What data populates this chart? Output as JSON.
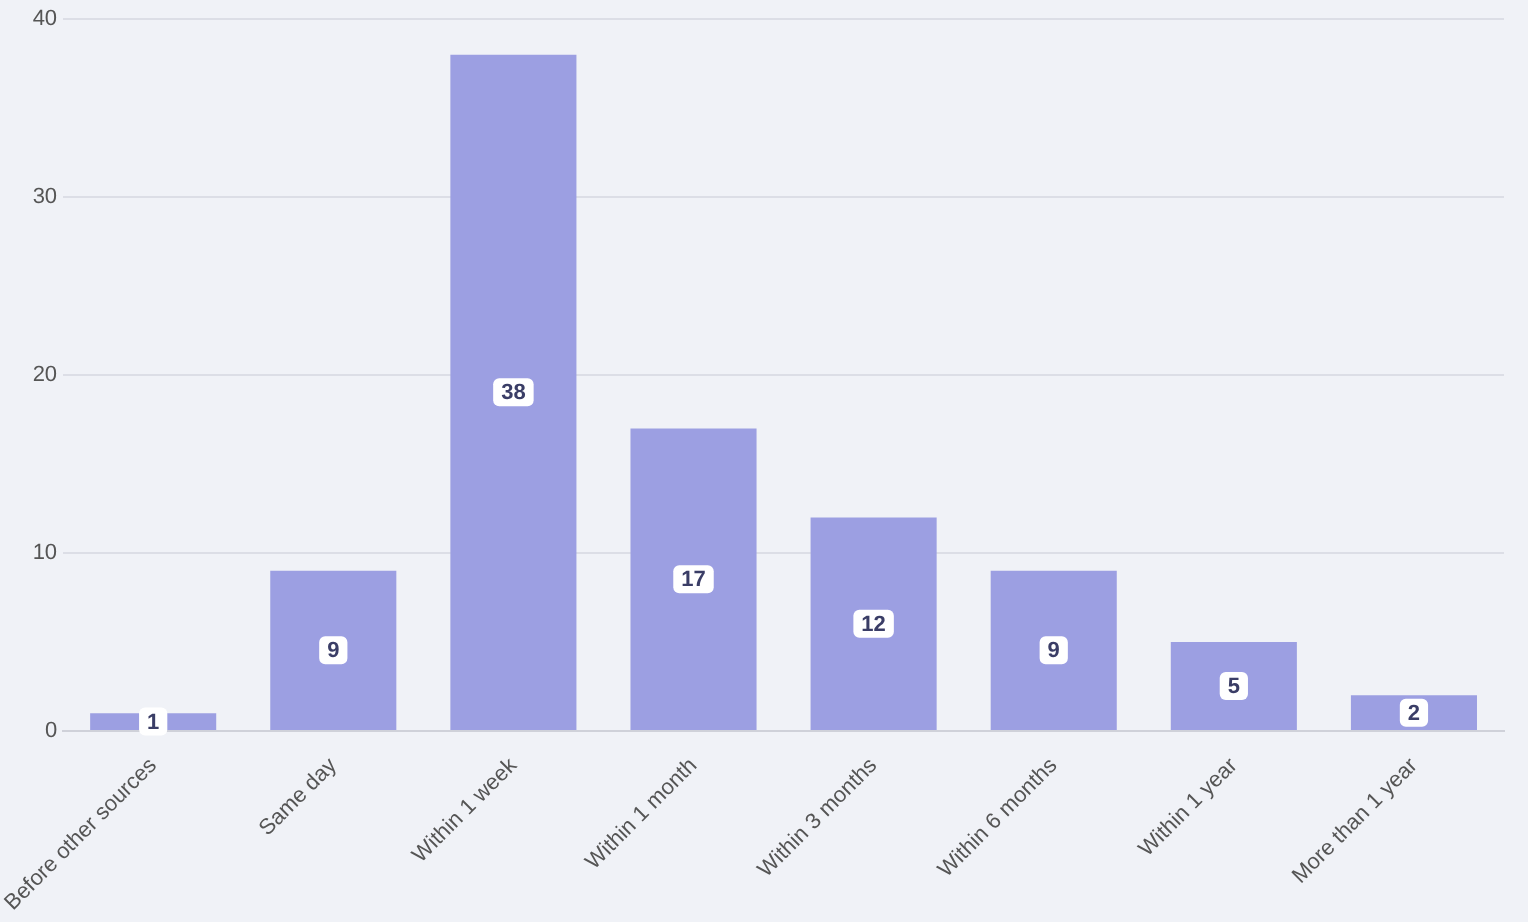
{
  "chart_data": {
    "type": "bar",
    "categories": [
      "Before other sources",
      "Same day",
      "Within 1 week",
      "Within 1 month",
      "Within 3 months",
      "Within 6 months",
      "Within 1 year",
      "More than 1 year"
    ],
    "values": [
      1,
      9,
      38,
      17,
      12,
      9,
      5,
      2
    ],
    "color": "#9c9fe2",
    "ylim": [
      0,
      40
    ],
    "yticks": [
      0,
      10,
      20,
      30,
      40
    ],
    "grid": "y",
    "legend": false,
    "data_labels": true
  }
}
